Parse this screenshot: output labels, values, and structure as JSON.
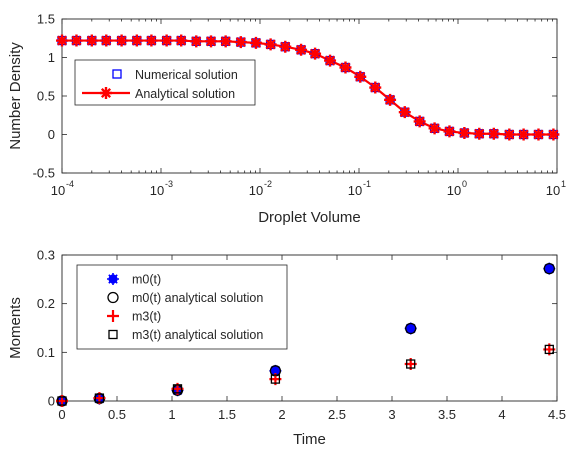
{
  "chart_data": [
    {
      "type": "scatter",
      "xscale": "log",
      "xlabel": "Droplet Volume",
      "ylabel": "Number Density",
      "xlim": [
        0.0001,
        10
      ],
      "ylim": [
        -0.5,
        1.5
      ],
      "xticks": [
        0.0001,
        0.001,
        0.01,
        0.1,
        1,
        10
      ],
      "xtick_labels": [
        {
          "base": "10",
          "exp": "-4"
        },
        {
          "base": "10",
          "exp": "-3"
        },
        {
          "base": "10",
          "exp": "-2"
        },
        {
          "base": "10",
          "exp": "-1"
        },
        {
          "base": "10",
          "exp": "0"
        },
        {
          "base": "10",
          "exp": "1"
        }
      ],
      "yticks": [
        -0.5,
        0,
        0.5,
        1,
        1.5
      ],
      "ytick_labels": [
        "-0.5",
        "0",
        "0.5",
        "1",
        "1.5"
      ],
      "grid": false,
      "legend_position": "left",
      "legend": [
        "Numerical solution",
        "Analytical solution"
      ],
      "x": [
        0.0001,
        0.00014,
        0.0002,
        0.00028,
        0.0004,
        0.00057,
        0.0008,
        0.00114,
        0.0016,
        0.00227,
        0.0032,
        0.0045,
        0.0064,
        0.0091,
        0.0128,
        0.018,
        0.026,
        0.036,
        0.051,
        0.073,
        0.103,
        0.146,
        0.206,
        0.29,
        0.41,
        0.58,
        0.82,
        1.16,
        1.64,
        2.3,
        3.3,
        4.6,
        6.5,
        9.2
      ],
      "series": [
        {
          "name": "Numerical solution",
          "marker": "open-square",
          "color": "#0000ff",
          "y": [
            1.22,
            1.22,
            1.22,
            1.22,
            1.22,
            1.22,
            1.22,
            1.22,
            1.22,
            1.21,
            1.21,
            1.21,
            1.2,
            1.19,
            1.17,
            1.14,
            1.1,
            1.05,
            0.96,
            0.87,
            0.75,
            0.61,
            0.45,
            0.29,
            0.17,
            0.08,
            0.04,
            0.02,
            0.01,
            0.01,
            0.0,
            0.0,
            0.0,
            0.0
          ]
        },
        {
          "name": "Analytical solution",
          "marker": "asterisk",
          "line": true,
          "color": "#ff0000",
          "y": [
            1.22,
            1.22,
            1.22,
            1.22,
            1.22,
            1.22,
            1.22,
            1.22,
            1.22,
            1.21,
            1.21,
            1.21,
            1.2,
            1.19,
            1.17,
            1.14,
            1.1,
            1.05,
            0.96,
            0.87,
            0.75,
            0.61,
            0.45,
            0.29,
            0.17,
            0.08,
            0.04,
            0.02,
            0.01,
            0.01,
            0.0,
            0.0,
            0.0,
            0.0
          ]
        }
      ]
    },
    {
      "type": "scatter",
      "xlabel": "Time",
      "ylabel": "Moments",
      "xlim": [
        0,
        4.5
      ],
      "ylim": [
        0,
        0.3
      ],
      "xticks": [
        0,
        0.5,
        1,
        1.5,
        2,
        2.5,
        3,
        3.5,
        4,
        4.5
      ],
      "xtick_labels": [
        "0",
        "0.5",
        "1",
        "1.5",
        "2",
        "2.5",
        "3",
        "3.5",
        "4",
        "4.5"
      ],
      "yticks": [
        0,
        0.1,
        0.2,
        0.3
      ],
      "ytick_labels": [
        "0",
        "0.1",
        "0.2",
        "0.3"
      ],
      "grid": false,
      "legend_position": "top-left",
      "legend": [
        "m0(t)",
        "m0(t) analytical solution",
        "m3(t)",
        "m3(t) analytical solution"
      ],
      "x": [
        0,
        0.34,
        1.05,
        1.94,
        3.17,
        4.43
      ],
      "series": [
        {
          "name": "m0(t)",
          "marker": "blue-asterisk",
          "color": "#0000ff",
          "y": [
            0,
            0.005,
            0.022,
            0.062,
            0.149,
            0.272
          ]
        },
        {
          "name": "m0(t) analytical solution",
          "marker": "open-circle",
          "color": "#000000",
          "y": [
            0,
            0.005,
            0.022,
            0.062,
            0.149,
            0.272
          ]
        },
        {
          "name": "m3(t)",
          "marker": "plus",
          "color": "#ff0000",
          "y": [
            0,
            0.006,
            0.025,
            0.045,
            0.076,
            0.106
          ]
        },
        {
          "name": "m3(t) analytical solution",
          "marker": "open-square",
          "color": "#000000",
          "y": [
            0,
            0.006,
            0.025,
            0.045,
            0.076,
            0.106
          ]
        }
      ]
    }
  ]
}
